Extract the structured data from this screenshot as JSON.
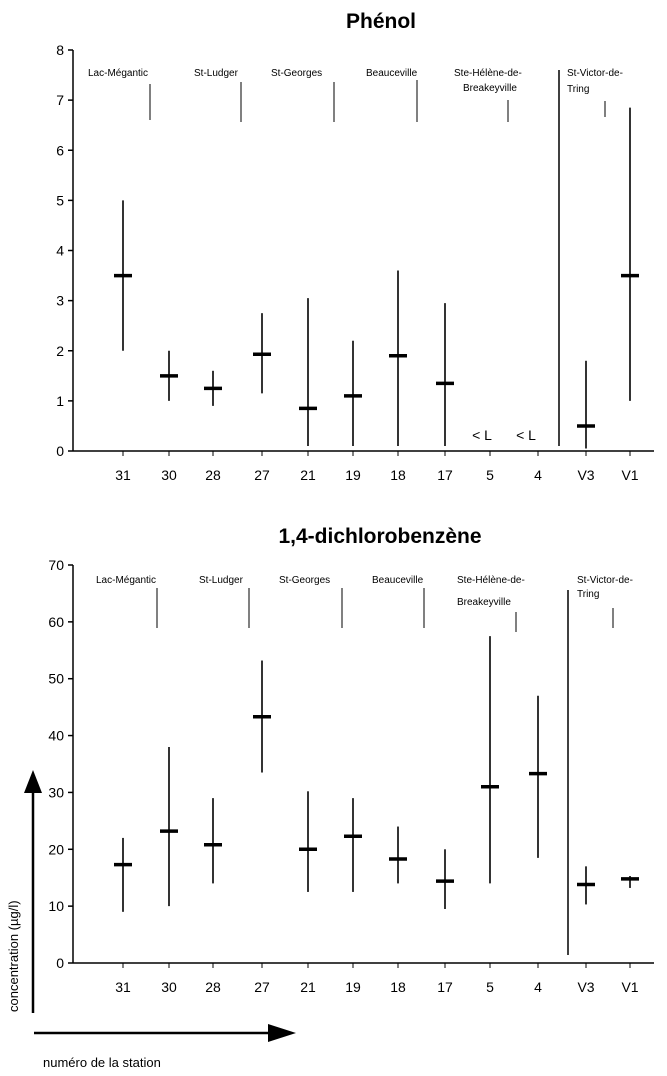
{
  "chart_data": [
    {
      "type": "range",
      "title": "Phénol",
      "categories": [
        "31",
        "30",
        "28",
        "27",
        "21",
        "19",
        "18",
        "17",
        "5",
        "4",
        "V3",
        "V1"
      ],
      "ylim": [
        0,
        8
      ],
      "yticks": [
        "0",
        "1",
        "2",
        "3",
        "4",
        "5",
        "6",
        "7",
        "8"
      ],
      "mean": [
        3.5,
        1.5,
        1.25,
        1.93,
        0.85,
        1.1,
        1.9,
        1.35,
        null,
        null,
        0.5,
        3.5
      ],
      "min": [
        2.0,
        1.0,
        0.9,
        1.15,
        0.1,
        0.1,
        0.1,
        0.1,
        null,
        null,
        0.05,
        1.0
      ],
      "max": [
        5.0,
        2.0,
        1.6,
        2.75,
        3.05,
        2.2,
        3.6,
        2.95,
        null,
        null,
        1.8,
        6.85
      ],
      "annotations": [
        "< L",
        "< L"
      ],
      "stations": [
        "Lac-Mégantic",
        "St-Ludger",
        "St-Georges",
        "Beauceville",
        "Ste-Hélène-de-",
        "Breakeyville",
        "St-Victor-de-",
        "Tring"
      ]
    },
    {
      "type": "range",
      "title": "1,4-dichlorobenzène",
      "categories": [
        "31",
        "30",
        "28",
        "27",
        "21",
        "19",
        "18",
        "17",
        "5",
        "4",
        "V3",
        "V1"
      ],
      "ylim": [
        0,
        70
      ],
      "yticks": [
        "0",
        "10",
        "20",
        "30",
        "40",
        "50",
        "60",
        "70"
      ],
      "mean": [
        17.3,
        23.2,
        20.8,
        43.3,
        20.0,
        22.3,
        18.3,
        14.4,
        31.0,
        33.3,
        13.8,
        14.8
      ],
      "min": [
        9.0,
        10.0,
        14.0,
        33.5,
        12.5,
        12.5,
        14.0,
        9.5,
        14.0,
        18.5,
        10.3,
        13.2
      ],
      "max": [
        22.0,
        38.0,
        29.0,
        53.2,
        30.2,
        29.0,
        24.0,
        20.0,
        57.5,
        47.0,
        17.0,
        15.3
      ],
      "stations": [
        "Lac-Mégantic",
        "St-Ludger",
        "St-Georges",
        "Beauceville",
        "Ste-Hélène-de-",
        "Breakeyville",
        "St-Victor-de-",
        "Tring"
      ]
    }
  ],
  "axis_labels": {
    "y": "concentration (µg/l)",
    "x": "numéro de la station"
  }
}
